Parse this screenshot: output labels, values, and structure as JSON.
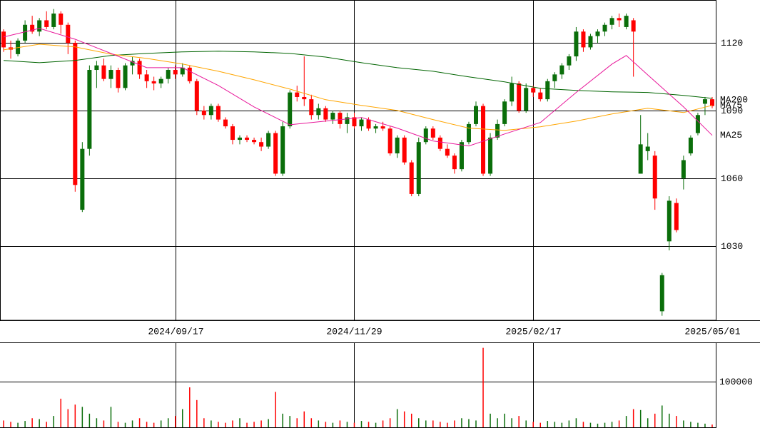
{
  "chart_data": {
    "type": "candlestick",
    "categories": [
      null,
      null,
      null,
      null,
      null,
      null,
      null,
      null,
      null,
      null,
      null,
      null,
      null,
      null,
      null,
      null,
      null,
      null,
      null,
      null,
      null,
      null,
      null,
      null,
      "2024/09/17",
      null,
      null,
      null,
      null,
      null,
      null,
      null,
      null,
      null,
      null,
      null,
      null,
      null,
      null,
      null,
      null,
      null,
      null,
      null,
      null,
      null,
      null,
      null,
      null,
      "2024/11/29",
      null,
      null,
      null,
      null,
      null,
      null,
      null,
      null,
      null,
      null,
      null,
      null,
      null,
      null,
      null,
      null,
      null,
      null,
      null,
      null,
      null,
      null,
      null,
      null,
      "2025/02/17",
      null,
      null,
      null,
      null,
      null,
      null,
      null,
      null,
      null,
      null,
      null,
      null,
      null,
      null,
      null,
      null,
      null,
      null,
      null,
      null,
      null,
      null,
      null,
      null,
      "2025/05/01"
    ],
    "open": [
      1125,
      1118,
      1115,
      1121,
      1128,
      1125,
      1130,
      1127,
      1133,
      1128,
      1120,
      1046,
      1073,
      1108,
      1110,
      1104,
      1108,
      1100,
      1110,
      1112,
      1106,
      1103,
      1102,
      1104,
      1108,
      1106,
      1109,
      1103,
      1090,
      1088,
      1092,
      1086,
      1083,
      1077,
      1078,
      1077,
      1076,
      1074,
      1080,
      1062,
      1083,
      1098,
      1096,
      1095,
      1088,
      1091,
      1086,
      1089,
      1084,
      1087,
      1083,
      1086,
      1082,
      1083,
      1082,
      1071,
      1078,
      1067,
      1053,
      1076,
      1082,
      1078,
      1073,
      1070,
      1064,
      1076,
      1084,
      1092,
      1062,
      1078,
      1084,
      1094,
      1102,
      1090,
      1100,
      1098,
      1095,
      1103,
      1106,
      1110,
      1114,
      1125,
      1118,
      1123,
      1125,
      1128,
      1131,
      1127,
      1130,
      1062,
      1072,
      1070,
      1001,
      1032,
      1049,
      1060,
      1071,
      1080,
      1093,
      1095
    ],
    "high": [
      1126,
      1121,
      1122,
      1130,
      1132,
      1131,
      1134,
      1135,
      1134,
      1129,
      1121,
      1076,
      1110,
      1112,
      1113,
      1110,
      1109,
      1111,
      1114,
      1113,
      1108,
      1105,
      1105,
      1109,
      1110,
      1111,
      1110,
      1104,
      1092,
      1093,
      1093,
      1087,
      1084,
      1079,
      1079,
      1078,
      1078,
      1081,
      1081,
      1085,
      1099,
      1101,
      1114,
      1097,
      1093,
      1092,
      1090,
      1090,
      1089,
      1089,
      1087,
      1087,
      1084,
      1085,
      1083,
      1079,
      1079,
      1068,
      1078,
      1083,
      1083,
      1079,
      1075,
      1071,
      1077,
      1085,
      1094,
      1093,
      1080,
      1086,
      1095,
      1105,
      1103,
      1102,
      1101,
      1100,
      1104,
      1107,
      1111,
      1115,
      1127,
      1126,
      1124,
      1126,
      1129,
      1132,
      1133,
      1133,
      1131,
      1088,
      1080,
      1072,
      1018,
      1052,
      1051,
      1070,
      1079,
      1089,
      1096,
      1096
    ],
    "low": [
      1116,
      1113,
      1114,
      1120,
      1124,
      1123,
      1126,
      1126,
      1124,
      1115,
      1054,
      1045,
      1070,
      1100,
      1103,
      1100,
      1098,
      1099,
      1106,
      1104,
      1100,
      1099,
      1100,
      1102,
      1104,
      1105,
      1102,
      1088,
      1086,
      1086,
      1085,
      1082,
      1075,
      1075,
      1076,
      1075,
      1072,
      1073,
      1061,
      1061,
      1082,
      1094,
      1092,
      1086,
      1086,
      1085,
      1084,
      1082,
      1080,
      1082,
      1081,
      1081,
      1080,
      1081,
      1070,
      1069,
      1066,
      1052,
      1052,
      1075,
      1077,
      1072,
      1069,
      1062,
      1063,
      1075,
      1083,
      1061,
      1061,
      1077,
      1083,
      1092,
      1089,
      1089,
      1096,
      1094,
      1094,
      1100,
      1104,
      1108,
      1112,
      1116,
      1117,
      1120,
      1123,
      1126,
      1127,
      1126,
      1105,
      1062,
      1068,
      1046,
      999,
      1028,
      1036,
      1055,
      1070,
      1079,
      1088,
      1091
    ],
    "close": [
      1118,
      1117,
      1121,
      1128,
      1125,
      1130,
      1127,
      1133,
      1128,
      1120,
      1057,
      1073,
      1108,
      1110,
      1104,
      1108,
      1100,
      1110,
      1112,
      1106,
      1103,
      1102,
      1104,
      1108,
      1106,
      1109,
      1103,
      1090,
      1088,
      1092,
      1086,
      1083,
      1077,
      1078,
      1077,
      1076,
      1074,
      1080,
      1062,
      1083,
      1098,
      1096,
      1095,
      1088,
      1091,
      1086,
      1089,
      1084,
      1087,
      1083,
      1086,
      1082,
      1083,
      1082,
      1071,
      1078,
      1067,
      1053,
      1076,
      1082,
      1078,
      1073,
      1070,
      1064,
      1076,
      1084,
      1092,
      1062,
      1078,
      1084,
      1094,
      1102,
      1090,
      1100,
      1098,
      1095,
      1103,
      1106,
      1110,
      1114,
      1125,
      1118,
      1123,
      1125,
      1128,
      1131,
      1130,
      1132,
      1125,
      1075,
      1074,
      1051,
      1017,
      1050,
      1037,
      1068,
      1078,
      1088,
      1095,
      1092
    ],
    "up_color": "#0a6e0a",
    "down_color": "#ff0000",
    "ylim": [
      997,
      1139
    ],
    "yticks": [
      1030,
      1060,
      1090,
      1120
    ],
    "grid": true,
    "lines": [
      {
        "name": "MA200",
        "color": "#006400",
        "x": [
          0,
          5,
          10,
          15,
          20,
          25,
          30,
          35,
          40,
          45,
          50,
          55,
          60,
          65,
          70,
          75,
          80,
          85,
          90,
          95,
          99
        ],
        "values": [
          1112.2,
          1111.2,
          1112.2,
          1114.4,
          1115.3,
          1116,
          1116.3,
          1116,
          1115.3,
          1113.7,
          1111.2,
          1109,
          1107.4,
          1104.9,
          1102.7,
          1099.8,
          1098.9,
          1098.3,
          1098,
          1096.7,
          1095.4
        ]
      },
      {
        "name": "MA75",
        "color": "#ffa500",
        "x": [
          0,
          5,
          10,
          15,
          20,
          25,
          30,
          35,
          40,
          45,
          50,
          55,
          60,
          65,
          70,
          75,
          80,
          85,
          90,
          95,
          99
        ],
        "values": [
          1116.9,
          1119.4,
          1118.2,
          1115,
          1113.1,
          1110.6,
          1107.4,
          1103.6,
          1099.5,
          1094.8,
          1092.3,
          1090,
          1086,
          1082.2,
          1081.2,
          1082.8,
          1085.3,
          1088.5,
          1091,
          1089.1,
          1092.3
        ]
      },
      {
        "name": "MA25",
        "color": "#e8179a",
        "x": [
          0,
          5,
          10,
          15,
          20,
          25,
          30,
          35,
          40,
          45,
          50,
          55,
          60,
          65,
          70,
          75,
          80,
          85,
          87,
          90,
          95,
          99
        ],
        "values": [
          1122.6,
          1126.4,
          1121.6,
          1115.3,
          1109,
          1109,
          1101.1,
          1091.6,
          1083.7,
          1085.3,
          1086.9,
          1082.2,
          1076.5,
          1074.3,
          1079.6,
          1084.7,
          1098,
          1110.6,
          1114.4,
          1105.8,
          1091.6,
          1079
        ]
      }
    ],
    "volume": {
      "values": [
        15000,
        12000,
        10000,
        14000,
        20000,
        18000,
        12000,
        25000,
        63000,
        40000,
        50000,
        45000,
        30000,
        20000,
        15000,
        45000,
        12000,
        10000,
        15000,
        20000,
        12000,
        10000,
        15000,
        20000,
        25000,
        40000,
        88000,
        60000,
        20000,
        15000,
        12000,
        10000,
        15000,
        20000,
        10000,
        12000,
        15000,
        18000,
        78000,
        30000,
        25000,
        20000,
        35000,
        20000,
        15000,
        12000,
        10000,
        15000,
        12000,
        10000,
        14000,
        12000,
        10000,
        15000,
        20000,
        40000,
        35000,
        30000,
        20000,
        15000,
        15000,
        12000,
        10000,
        15000,
        20000,
        18000,
        15000,
        175000,
        30000,
        20000,
        30000,
        20000,
        25000,
        15000,
        12000,
        10000,
        14000,
        12000,
        10000,
        15000,
        20000,
        12000,
        10000,
        8000,
        10000,
        12000,
        15000,
        25000,
        40000,
        38000,
        20000,
        30000,
        48000,
        30000,
        25000,
        15000,
        12000,
        10000,
        8000,
        6000
      ],
      "ylim": [
        0,
        187000
      ],
      "yticks": [
        100000
      ]
    }
  }
}
